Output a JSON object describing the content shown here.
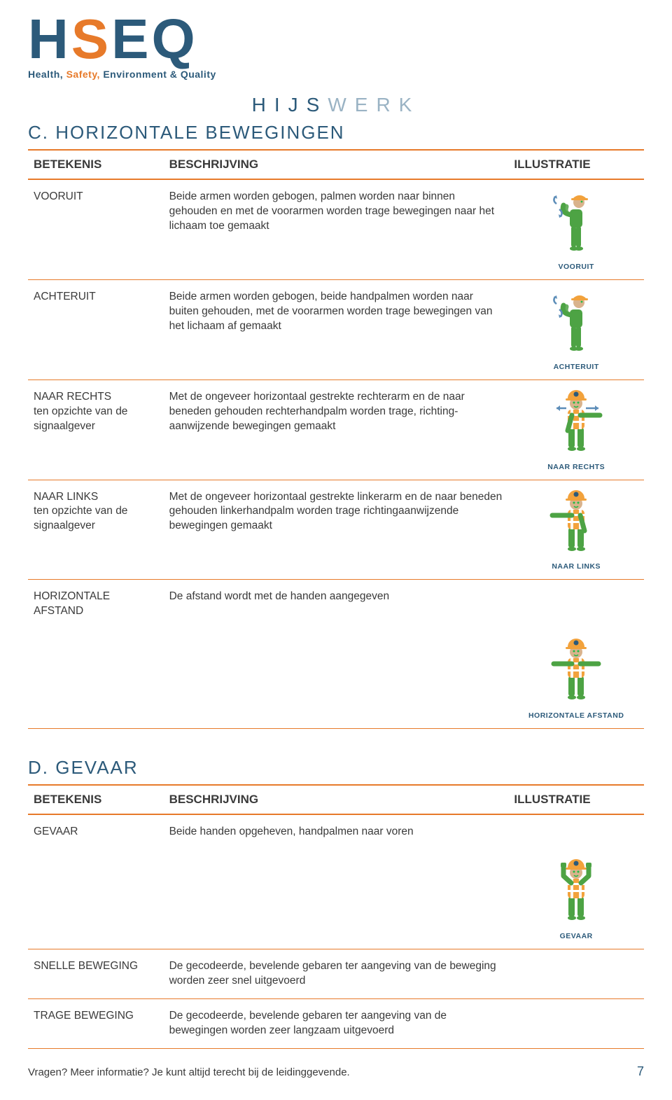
{
  "logo": {
    "h": "H",
    "s": "S",
    "e": "E",
    "q": "Q",
    "sub_w1": "Health,",
    "sub_w2": "Safety,",
    "sub_w3": "Environment &",
    "sub_w4": "Quality"
  },
  "page_header": {
    "accent": "HIJS",
    "rest": "WERK"
  },
  "colors": {
    "primary": "#2c5a7a",
    "accent": "#e77a2a",
    "text": "#3a3a3a",
    "header_light": "#9ab3c4",
    "green": "#4da344",
    "vest": "#f2a23c",
    "helmet": "#f2a23c",
    "skin": "#d9b38c",
    "arrow_blue": "#5c8db8"
  },
  "section_c": {
    "title": "C. HORIZONTALE BEWEGINGEN",
    "headers": {
      "bet": "BETEKENIS",
      "bes": "BESCHRIJVING",
      "ill": "ILLUSTRATIE"
    },
    "rows": [
      {
        "bet": "VOORUIT",
        "bes": "Beide armen worden gebogen, palmen worden naar binnen gehouden en met de voorarmen worden trage bewegingen naar het lichaam toe gemaakt",
        "caption": "VOORUIT",
        "figure": "side"
      },
      {
        "bet": "ACHTERUIT",
        "bes": "Beide armen worden gebogen, beide handpalmen worden naar buiten gehouden, met de voorarmen worden trage bewegingen van het lichaam af gemaakt",
        "caption": "ACHTERUIT",
        "figure": "side"
      },
      {
        "bet": "NAAR RECHTS ten opzichte van de signaalgever",
        "bes": "Met de ongeveer horizontaal gestrekte rechterarm en de naar beneden gehouden rechterhandpalm worden trage, richting-aanwijzende bewegingen gemaakt",
        "caption": "NAAR RECHTS",
        "figure": "right"
      },
      {
        "bet": "NAAR LINKS ten opzichte van de signaalgever",
        "bes": "Met de ongeveer horizontaal gestrekte linkerarm en de naar beneden gehouden linkerhandpalm worden trage richtingaanwijzende bewegingen gemaakt",
        "caption": "NAAR LINKS",
        "figure": "left"
      },
      {
        "bet": "HORIZONTALE AFSTAND",
        "bes": "De afstand wordt met de handen aangegeven",
        "caption": "HORIZONTALE AFSTAND",
        "figure": "both"
      }
    ]
  },
  "section_d": {
    "title": "D. GEVAAR",
    "headers": {
      "bet": "BETEKENIS",
      "bes": "BESCHRIJVING",
      "ill": "ILLUSTRATIE"
    },
    "rows": [
      {
        "bet": "GEVAAR",
        "bes": "Beide handen opgeheven, handpalmen naar voren",
        "caption": "GEVAAR",
        "figure": "up"
      },
      {
        "bet": "SNELLE BEWEGING",
        "bes": "De gecodeerde, bevelende gebaren ter aangeving van de beweging worden zeer snel uitgevoerd",
        "caption": "",
        "figure": ""
      },
      {
        "bet": "TRAGE BEWEGING",
        "bes": "De gecodeerde, bevelende gebaren ter aangeving van de bewegingen worden zeer langzaam uitgevoerd",
        "caption": "",
        "figure": ""
      }
    ]
  },
  "footer": {
    "text": "Vragen? Meer informatie? Je kunt altijd terecht bij de leidinggevende.",
    "page": "7"
  }
}
